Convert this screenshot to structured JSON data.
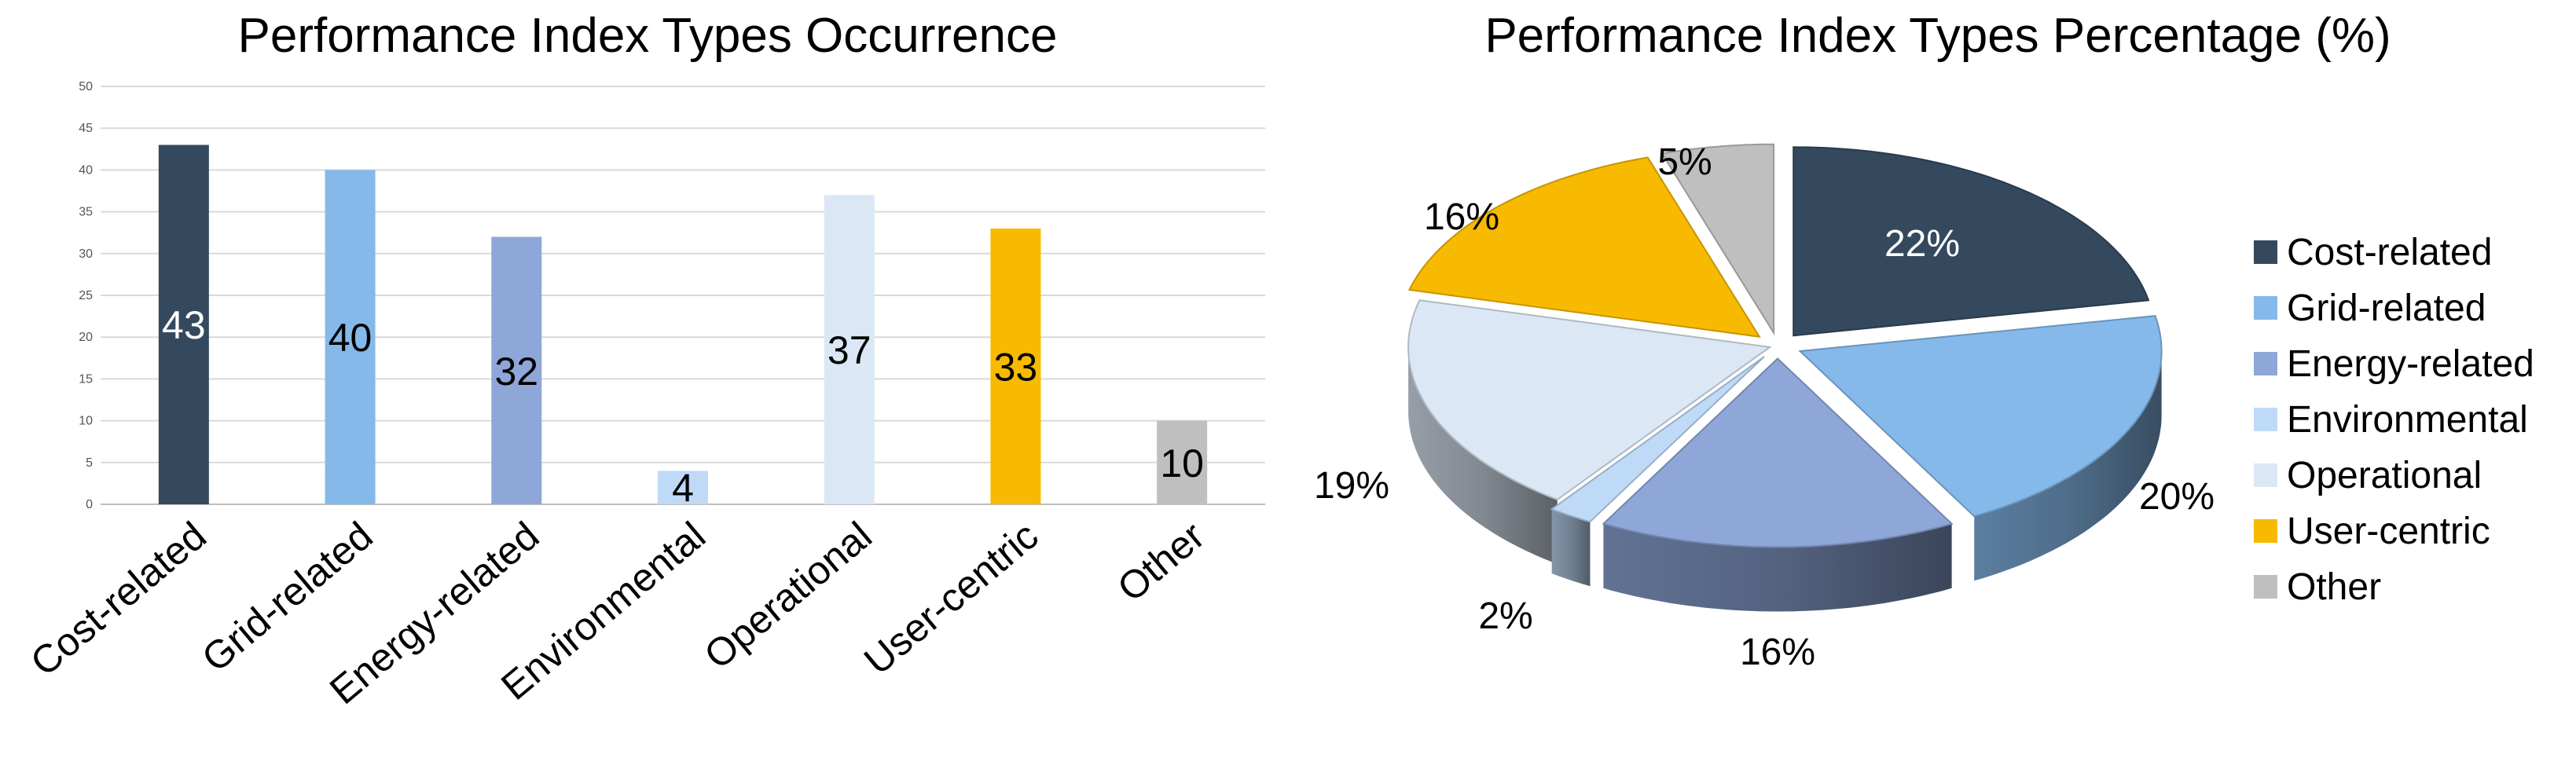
{
  "chart_data": [
    {
      "type": "bar",
      "title": "Performance Index Types Occurrence",
      "xlabel": "",
      "ylabel": "",
      "categories": [
        "Cost-related",
        "Grid-related",
        "Energy-related",
        "Environmental",
        "Operational",
        "User-centric",
        "Other"
      ],
      "values": [
        43,
        40,
        32,
        4,
        37,
        33,
        10
      ],
      "data_labels": [
        "43",
        "40",
        "32",
        "4",
        "37",
        "33",
        "10"
      ],
      "colors": [
        "#34495e",
        "#85b9ea",
        "#8ea7d8",
        "#bfdaf7",
        "#dbe7f4",
        "#f7ba00",
        "#bfbfbf"
      ],
      "label_colors": [
        "#ffffff",
        "#000000",
        "#000000",
        "#000000",
        "#000000",
        "#000000",
        "#000000"
      ],
      "ylim": [
        0,
        50
      ],
      "yticks": [
        "0",
        "5",
        "10",
        "15",
        "20",
        "25",
        "30",
        "35",
        "40",
        "45",
        "50"
      ],
      "grid": true,
      "legend": "none"
    },
    {
      "type": "pie",
      "title": "Performance Index Types Percentage (%)",
      "categories": [
        "Cost-related",
        "Grid-related",
        "Energy-related",
        "Environmental",
        "Operational",
        "User-centric",
        "Other"
      ],
      "values": [
        22,
        20,
        16,
        2,
        19,
        16,
        5
      ],
      "data_labels": [
        "22%",
        "20%",
        "16%",
        "2%",
        "19%",
        "16%",
        "5%"
      ],
      "colors": [
        "#34495e",
        "#85b9ea",
        "#8ea7d8",
        "#bfdaf7",
        "#dbe7f4",
        "#f7ba00",
        "#bfbfbf"
      ],
      "style": "3d-exploded",
      "legend": "right"
    }
  ]
}
